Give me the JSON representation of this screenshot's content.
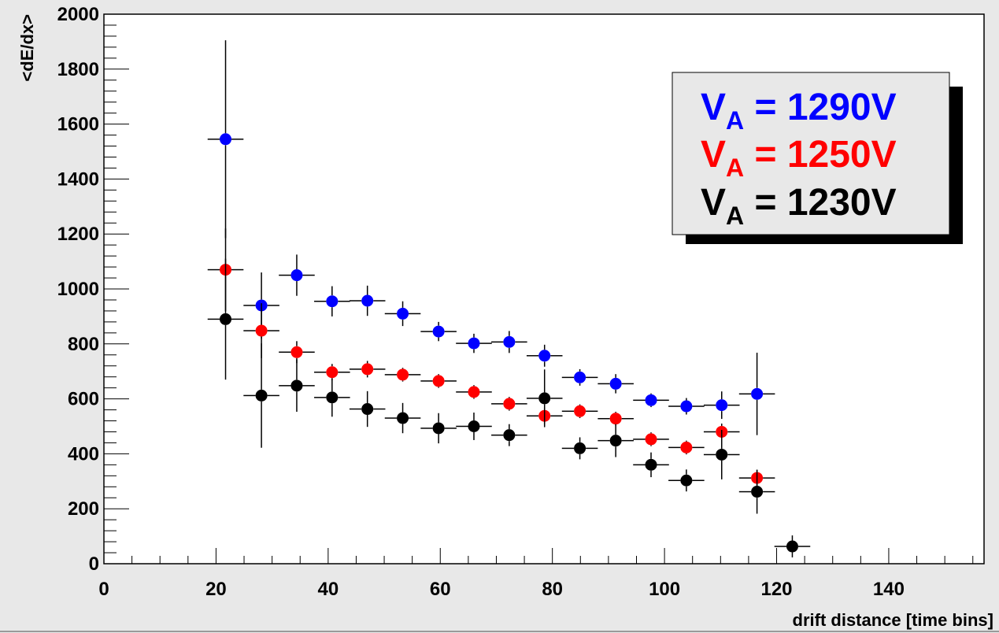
{
  "chart_data": {
    "type": "scatter",
    "title": "",
    "xlabel": "drift distance [time bins]",
    "ylabel": "<dE/dx>",
    "xlim": [
      0,
      157
    ],
    "ylim": [
      0,
      2000
    ],
    "x_ticks": [
      "0",
      "20",
      "40",
      "60",
      "80",
      "100",
      "120",
      "140"
    ],
    "y_ticks": [
      "0",
      "200",
      "400",
      "600",
      "800",
      "1000",
      "1200",
      "1400",
      "1600",
      "1800",
      "2000"
    ],
    "grid": false,
    "legend_position": "top-right",
    "series": [
      {
        "name": "V_A = 1290V",
        "color": "#0000ff",
        "points": [
          {
            "x": 21.7,
            "y": 1545,
            "ex": 3.2,
            "ey": 360
          },
          {
            "x": 28.1,
            "y": 940,
            "ex": 3.2,
            "ey": 120
          },
          {
            "x": 34.4,
            "y": 1050,
            "ex": 3.2,
            "ey": 75
          },
          {
            "x": 40.7,
            "y": 955,
            "ex": 3.2,
            "ey": 55
          },
          {
            "x": 47.0,
            "y": 957,
            "ex": 3.2,
            "ey": 55
          },
          {
            "x": 53.3,
            "y": 910,
            "ex": 3.2,
            "ey": 45
          },
          {
            "x": 59.7,
            "y": 845,
            "ex": 3.2,
            "ey": 35
          },
          {
            "x": 66.0,
            "y": 802,
            "ex": 3.2,
            "ey": 35
          },
          {
            "x": 72.3,
            "y": 807,
            "ex": 3.2,
            "ey": 40
          },
          {
            "x": 78.6,
            "y": 757,
            "ex": 3.2,
            "ey": 40
          },
          {
            "x": 84.9,
            "y": 678,
            "ex": 3.2,
            "ey": 30
          },
          {
            "x": 91.3,
            "y": 655,
            "ex": 3.2,
            "ey": 35
          },
          {
            "x": 97.6,
            "y": 595,
            "ex": 3.2,
            "ey": 25
          },
          {
            "x": 103.9,
            "y": 573,
            "ex": 3.2,
            "ey": 30
          },
          {
            "x": 110.2,
            "y": 577,
            "ex": 3.2,
            "ey": 50
          },
          {
            "x": 116.5,
            "y": 618,
            "ex": 3.2,
            "ey": 150
          }
        ]
      },
      {
        "name": "V_A = 1250V",
        "color": "#ff0000",
        "points": [
          {
            "x": 21.7,
            "y": 1070,
            "ex": 3.2,
            "ey": 150
          },
          {
            "x": 28.1,
            "y": 848,
            "ex": 3.2,
            "ey": 100
          },
          {
            "x": 34.4,
            "y": 770,
            "ex": 3.2,
            "ey": 40
          },
          {
            "x": 40.7,
            "y": 697,
            "ex": 3.2,
            "ey": 30
          },
          {
            "x": 47.0,
            "y": 708,
            "ex": 3.2,
            "ey": 30
          },
          {
            "x": 53.3,
            "y": 688,
            "ex": 3.2,
            "ey": 25
          },
          {
            "x": 59.7,
            "y": 665,
            "ex": 3.2,
            "ey": 25
          },
          {
            "x": 66.0,
            "y": 625,
            "ex": 3.2,
            "ey": 25
          },
          {
            "x": 72.3,
            "y": 582,
            "ex": 3.2,
            "ey": 25
          },
          {
            "x": 78.6,
            "y": 538,
            "ex": 3.2,
            "ey": 30
          },
          {
            "x": 84.9,
            "y": 555,
            "ex": 3.2,
            "ey": 25
          },
          {
            "x": 91.3,
            "y": 528,
            "ex": 3.2,
            "ey": 25
          },
          {
            "x": 97.6,
            "y": 453,
            "ex": 3.2,
            "ey": 25
          },
          {
            "x": 103.9,
            "y": 423,
            "ex": 3.2,
            "ey": 25
          },
          {
            "x": 110.2,
            "y": 480,
            "ex": 3.2,
            "ey": 30
          },
          {
            "x": 116.5,
            "y": 312,
            "ex": 3.2,
            "ey": 30
          }
        ]
      },
      {
        "name": "V_A = 1230V",
        "color": "#000000",
        "points": [
          {
            "x": 21.7,
            "y": 890,
            "ex": 3.2,
            "ey": 220
          },
          {
            "x": 28.1,
            "y": 612,
            "ex": 3.2,
            "ey": 190
          },
          {
            "x": 34.4,
            "y": 648,
            "ex": 3.2,
            "ey": 95
          },
          {
            "x": 40.7,
            "y": 605,
            "ex": 3.2,
            "ey": 70
          },
          {
            "x": 47.0,
            "y": 563,
            "ex": 3.2,
            "ey": 65
          },
          {
            "x": 53.3,
            "y": 530,
            "ex": 3.2,
            "ey": 55
          },
          {
            "x": 59.7,
            "y": 493,
            "ex": 3.2,
            "ey": 55
          },
          {
            "x": 66.0,
            "y": 500,
            "ex": 3.2,
            "ey": 50
          },
          {
            "x": 72.3,
            "y": 468,
            "ex": 3.2,
            "ey": 40
          },
          {
            "x": 78.6,
            "y": 602,
            "ex": 3.2,
            "ey": 105
          },
          {
            "x": 84.9,
            "y": 420,
            "ex": 3.2,
            "ey": 40
          },
          {
            "x": 91.3,
            "y": 448,
            "ex": 3.2,
            "ey": 60
          },
          {
            "x": 97.6,
            "y": 360,
            "ex": 3.2,
            "ey": 45
          },
          {
            "x": 103.9,
            "y": 303,
            "ex": 3.2,
            "ey": 40
          },
          {
            "x": 110.2,
            "y": 397,
            "ex": 3.2,
            "ey": 90
          },
          {
            "x": 116.5,
            "y": 262,
            "ex": 3.2,
            "ey": 80
          },
          {
            "x": 122.8,
            "y": 63,
            "ex": 3.2,
            "ey": 40
          }
        ]
      }
    ]
  },
  "legend": {
    "entries": [
      {
        "main": "V",
        "sub": "A",
        "rest": " = 1290V",
        "color": "#0000ff"
      },
      {
        "main": "V",
        "sub": "A",
        "rest": " = 1250V",
        "color": "#ff0000"
      },
      {
        "main": "V",
        "sub": "A",
        "rest": " = 1230V",
        "color": "#000000"
      }
    ]
  }
}
